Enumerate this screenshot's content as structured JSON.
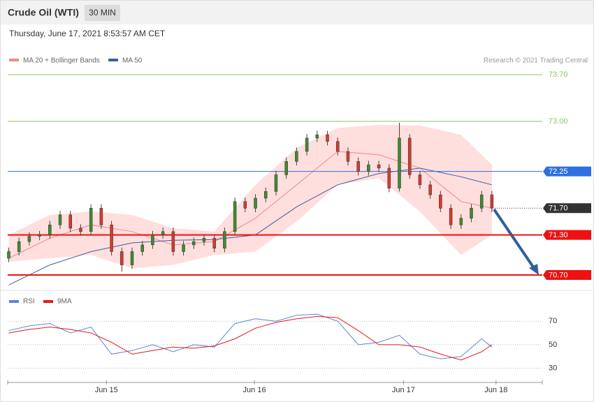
{
  "chart_data": {
    "type": "candlestick",
    "title": "Crude Oil (WTI)",
    "timeframe": "30 MIN",
    "subtitle": "Thursday, June 17, 2021 8:53:57 AM CET",
    "credit": "Research © 2021 Trading Central",
    "xlim": [
      -0.1,
      51.9
    ],
    "ylim": [
      70.5,
      73.8
    ],
    "xticks": [
      {
        "value": 9.5,
        "label": "Jun 15"
      },
      {
        "value": 23.9,
        "label": "Jun 16"
      },
      {
        "value": 38.4,
        "label": "Jun 17"
      },
      {
        "value": 47.4,
        "label": "Jun 18"
      }
    ],
    "candles": {
      "up_color": "#3d8b2f",
      "down_color": "#d23a2f",
      "open": [
        70.95,
        71.05,
        71.2,
        71.28,
        71.3,
        71.45,
        71.6,
        71.4,
        71.35,
        71.7,
        71.45,
        71.05,
        70.85,
        71.05,
        71.15,
        71.3,
        71.35,
        71.05,
        71.15,
        71.2,
        71.25,
        71.1,
        71.35,
        71.8,
        71.7,
        71.85,
        71.95,
        72.2,
        72.4,
        72.55,
        72.75,
        72.8,
        72.7,
        72.55,
        72.4,
        72.25,
        72.35,
        72.3,
        72.0,
        72.75,
        72.2,
        72.05,
        71.9,
        71.7,
        71.45,
        71.55,
        71.7,
        71.9
      ],
      "high": [
        71.11,
        71.26,
        71.34,
        71.36,
        71.51,
        71.66,
        71.66,
        71.46,
        71.76,
        71.76,
        71.51,
        71.11,
        71.11,
        71.21,
        71.36,
        71.41,
        71.41,
        71.21,
        71.26,
        71.31,
        71.31,
        71.41,
        71.86,
        71.86,
        71.91,
        72.01,
        72.26,
        72.46,
        72.61,
        72.81,
        72.86,
        72.86,
        72.76,
        72.61,
        72.46,
        72.41,
        72.41,
        72.36,
        72.98,
        72.81,
        72.26,
        72.11,
        71.96,
        71.76,
        71.61,
        71.76,
        71.96,
        71.96
      ],
      "low": [
        70.89,
        70.99,
        71.14,
        71.22,
        71.24,
        71.39,
        71.34,
        71.29,
        71.29,
        71.39,
        70.99,
        70.75,
        70.79,
        70.99,
        71.09,
        71.24,
        70.99,
        70.99,
        71.09,
        71.14,
        71.04,
        71.04,
        71.29,
        71.64,
        71.64,
        71.79,
        71.89,
        72.14,
        72.34,
        72.49,
        72.69,
        72.64,
        72.49,
        72.34,
        72.19,
        72.19,
        72.24,
        71.94,
        71.95,
        72.14,
        71.99,
        71.84,
        71.64,
        71.39,
        71.39,
        71.49,
        71.64,
        71.64
      ],
      "close": [
        71.05,
        71.2,
        71.28,
        71.3,
        71.45,
        71.6,
        71.4,
        71.35,
        71.7,
        71.45,
        71.05,
        70.85,
        71.05,
        71.15,
        71.3,
        71.35,
        71.05,
        71.15,
        71.2,
        71.25,
        71.1,
        71.35,
        71.8,
        71.7,
        71.85,
        71.95,
        72.2,
        72.4,
        72.55,
        72.75,
        72.8,
        72.7,
        72.55,
        72.4,
        72.25,
        72.35,
        72.3,
        72.0,
        72.75,
        72.2,
        72.05,
        71.9,
        71.7,
        71.45,
        71.55,
        71.7,
        71.9,
        71.7
      ]
    },
    "bollinger": {
      "name": "MA 20 + Bollinger Bands",
      "color": "#f08a84",
      "band_color": "#ffd6d6",
      "x": [
        0,
        4,
        8,
        12,
        16,
        20,
        24,
        28,
        32,
        36,
        40,
        44,
        47
      ],
      "middle": [
        70.95,
        71.25,
        71.45,
        71.35,
        71.15,
        71.2,
        71.55,
        72.05,
        72.55,
        72.5,
        72.3,
        71.8,
        71.7
      ],
      "upper": [
        71.3,
        71.6,
        71.65,
        71.6,
        71.4,
        71.35,
        72.05,
        72.6,
        72.9,
        72.95,
        72.94,
        72.8,
        72.35
      ],
      "lower": [
        70.9,
        70.95,
        71.0,
        70.8,
        70.85,
        71.0,
        71.05,
        71.5,
        72.05,
        72.15,
        71.65,
        71.0,
        71.3
      ]
    },
    "ma50": {
      "name": "MA 50",
      "color": "#3a5f9e",
      "x": [
        0,
        4,
        8,
        12,
        16,
        20,
        24,
        28,
        32,
        36,
        40,
        44,
        47
      ],
      "values": [
        70.55,
        70.85,
        71.05,
        71.18,
        71.22,
        71.23,
        71.3,
        71.72,
        72.05,
        72.22,
        72.3,
        72.17,
        72.05
      ]
    },
    "levels": [
      {
        "value": 73.7,
        "label": "73.70",
        "color": "#8cc36a",
        "style": "plain"
      },
      {
        "value": 73.0,
        "label": "73.00",
        "color": "#8cc36a",
        "style": "plain"
      },
      {
        "value": 72.25,
        "color": "#2f6fe0",
        "style": "box"
      },
      {
        "value": 71.7,
        "label": "71.70",
        "color": "#333333",
        "style": "dotted"
      },
      {
        "value": 71.3,
        "label": "71.30",
        "color": "#ee1111",
        "style": "thick"
      },
      {
        "value": 70.7,
        "label": "70.70",
        "color": "#ee1111",
        "style": "thick"
      }
    ],
    "rsi": {
      "type": "line",
      "ylim": [
        20,
        85
      ],
      "yticks": [
        70,
        50,
        30
      ],
      "x": [
        0,
        2,
        4,
        6,
        8,
        10,
        12,
        14,
        16,
        18,
        20,
        22,
        24,
        26,
        28,
        30,
        32,
        34,
        36,
        38,
        40,
        42,
        44,
        46,
        47
      ],
      "series": [
        {
          "name": "RSI",
          "color": "#5b86d6",
          "values": [
            62,
            66,
            68,
            60,
            65,
            42,
            45,
            50,
            44,
            50,
            48,
            68,
            72,
            70,
            75,
            76,
            70,
            50,
            52,
            58,
            42,
            38,
            40,
            55,
            48
          ]
        },
        {
          "name": "9MA",
          "color": "#e81818",
          "values": [
            60,
            63,
            65,
            63,
            60,
            52,
            42,
            45,
            48,
            47,
            49,
            55,
            64,
            69,
            72,
            74,
            73,
            62,
            50,
            50,
            48,
            42,
            37,
            44,
            50
          ]
        }
      ]
    }
  }
}
